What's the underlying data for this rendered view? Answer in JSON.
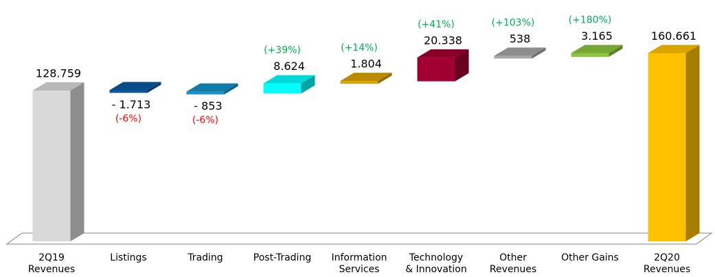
{
  "chart_data": {
    "type": "waterfall",
    "categories": [
      "2Q19\nRevenues",
      "Listings",
      "Trading",
      "Post-Trading",
      "Information\nServices",
      "Technology\n& Innovation",
      "Other\nRevenues",
      "Other Gains",
      "2Q20\nRevenues"
    ],
    "values": [
      128759,
      -1713,
      -853,
      8624,
      1804,
      20338,
      538,
      3165,
      160661
    ],
    "value_labels": [
      "128.759",
      "- 1.713",
      "- 853",
      "8.624",
      "1.804",
      "20.338",
      "538",
      "3.165",
      "160.661"
    ],
    "change_labels": [
      null,
      "(-6%)",
      "(-6%)",
      "(+39%)",
      "(+14%)",
      "(+41%)",
      "(+103%)",
      "(+180%)",
      null
    ],
    "colors": [
      "#d9d9d9",
      "#0b5aa0",
      "#1492c8",
      "#00ffff",
      "#d9a400",
      "#a00032",
      "#a6a6a6",
      "#8cc63f",
      "#ffc000"
    ],
    "positive_color": "#00b050",
    "negative_color": "#ff0000"
  }
}
